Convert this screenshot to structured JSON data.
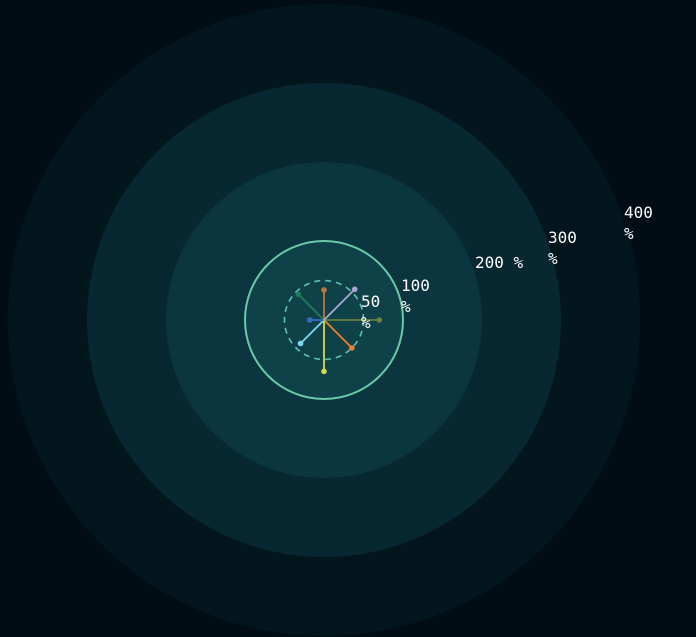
{
  "chart_data": {
    "type": "radial-spokes",
    "rings": [
      {
        "value": 400,
        "label_number": "400",
        "label_unit": "%",
        "fill": "#03161d"
      },
      {
        "value": 300,
        "label_number": "300",
        "label_unit": "%",
        "fill": "#072731"
      },
      {
        "value": 200,
        "label_number": "200 %",
        "label_unit": "",
        "fill": "#0b353f"
      },
      {
        "value": 100,
        "label_number": "100",
        "label_unit": "%",
        "fill": "#0f4148"
      },
      {
        "value": 50,
        "label_number": "50",
        "label_unit": "%",
        "fill": "none"
      }
    ],
    "reference_ring_color": "#69c9a7",
    "dashed_ring_color": "#5cc3b4",
    "spokes": [
      {
        "angle": 0,
        "value": 70,
        "color": "#6b7f3a"
      },
      {
        "angle": 45,
        "value": 50,
        "color": "#f07d2c"
      },
      {
        "angle": 90,
        "value": 65,
        "color": "#d7d84a"
      },
      {
        "angle": 135,
        "value": 42,
        "color": "#7fd7ee"
      },
      {
        "angle": 180,
        "value": 18,
        "color": "#2f6fbb"
      },
      {
        "angle": 225,
        "value": 46,
        "color": "#1f7a5c"
      },
      {
        "angle": 270,
        "value": 38,
        "color": "#c0763a"
      },
      {
        "angle": 315,
        "value": 55,
        "color": "#a9a4d4"
      }
    ]
  }
}
